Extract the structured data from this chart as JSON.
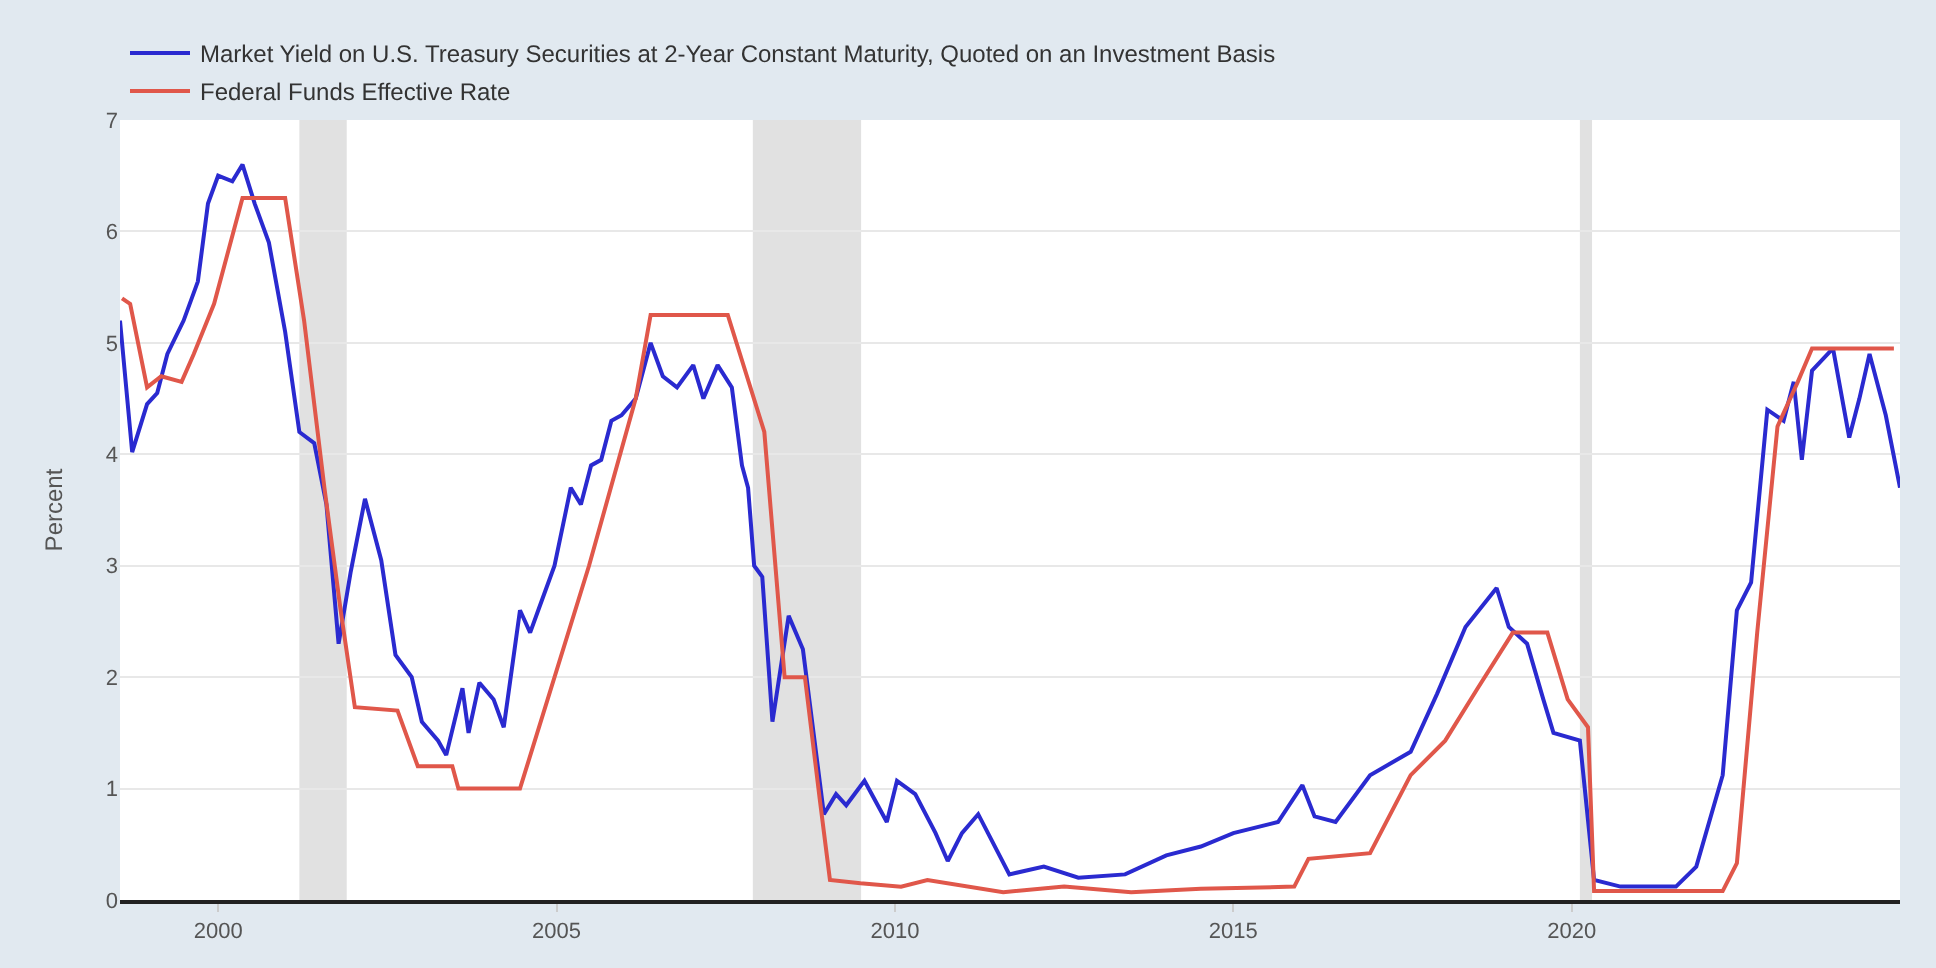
{
  "chart_data": {
    "type": "line",
    "ylabel": "Percent",
    "xlim": [
      1998.55,
      2024.85
    ],
    "xticks": [
      2000,
      2005,
      2010,
      2015,
      2020
    ],
    "ylim": [
      0,
      7
    ],
    "yticks": [
      0,
      1,
      2,
      3,
      4,
      5,
      6,
      7
    ],
    "grid": "y",
    "legend": "top left",
    "marker": "none",
    "line_style": "solid",
    "bands": [
      {
        "axis": "x",
        "from": 2001.2,
        "to": 2001.9,
        "color": "#e1e1e1"
      },
      {
        "axis": "x",
        "from": 2007.9,
        "to": 2009.5,
        "color": "#e1e1e1"
      },
      {
        "axis": "x",
        "from": 2020.12,
        "to": 2020.3,
        "color": "#e1e1e1"
      }
    ],
    "series": [
      {
        "name": "Market Yield on U.S. Treasury Securities at 2-Year Constant Maturity, Quoted on an Investment Basis",
        "color": "#2a2ad0",
        "x": [
          1998.55,
          1998.73,
          1998.95,
          1999.1,
          1999.25,
          1999.49,
          1999.7,
          1999.85,
          2000,
          2000.21,
          2000.36,
          2000.54,
          2000.75,
          2000.99,
          2001.2,
          2001.42,
          2001.6,
          2001.78,
          2001.96,
          2002.17,
          2002.41,
          2002.62,
          2002.86,
          2003.01,
          2003.25,
          2003.37,
          2003.61,
          2003.7,
          2003.86,
          2004.07,
          2004.22,
          2004.46,
          2004.61,
          2004.73,
          2004.97,
          2005.21,
          2005.36,
          2005.51,
          2005.66,
          2005.81,
          2005.96,
          2006.17,
          2006.39,
          2006.57,
          2006.78,
          2007.02,
          2007.17,
          2007.38,
          2007.59,
          2007.74,
          2007.83,
          2007.92,
          2008.04,
          2008.19,
          2008.43,
          2008.64,
          2008.95,
          2009.13,
          2009.28,
          2009.55,
          2009.88,
          2010.03,
          2010.3,
          2010.6,
          2010.78,
          2010.99,
          2011.23,
          2011.69,
          2012.2,
          2012.71,
          2013.4,
          2014.01,
          2014.52,
          2015,
          2015.66,
          2016.02,
          2016.2,
          2016.51,
          2017.02,
          2017.62,
          2018.01,
          2018.43,
          2018.89,
          2019.07,
          2019.34,
          2019.58,
          2019.73,
          2020.12,
          2020.33,
          2020.72,
          2021.54,
          2021.84,
          2022.23,
          2022.44,
          2022.65,
          2022.89,
          2023.13,
          2023.28,
          2023.4,
          2023.55,
          2023.86,
          2024.1,
          2024.25,
          2024.4,
          2024.64,
          2024.85
        ],
        "values": [
          5.2,
          4.02,
          4.45,
          4.55,
          4.9,
          5.2,
          5.55,
          6.25,
          6.5,
          6.45,
          6.6,
          6.25,
          5.9,
          5.1,
          4.2,
          4.1,
          3.55,
          2.3,
          2.95,
          3.6,
          3.05,
          2.2,
          2.0,
          1.6,
          1.43,
          1.3,
          1.9,
          1.5,
          1.95,
          1.8,
          1.55,
          2.6,
          2.4,
          2.6,
          3.0,
          3.7,
          3.55,
          3.9,
          3.95,
          4.3,
          4.35,
          4.5,
          5.0,
          4.7,
          4.6,
          4.8,
          4.5,
          4.8,
          4.6,
          3.9,
          3.7,
          3.0,
          2.9,
          1.6,
          2.55,
          2.25,
          0.77,
          0.95,
          0.85,
          1.07,
          0.7,
          1.07,
          0.95,
          0.6,
          0.35,
          0.6,
          0.77,
          0.23,
          0.3,
          0.2,
          0.23,
          0.4,
          0.48,
          0.6,
          0.7,
          1.03,
          0.75,
          0.7,
          1.12,
          1.33,
          1.85,
          2.45,
          2.8,
          2.45,
          2.3,
          1.8,
          1.5,
          1.43,
          0.18,
          0.12,
          0.12,
          0.3,
          1.12,
          2.6,
          2.85,
          4.4,
          4.3,
          4.65,
          3.95,
          4.75,
          4.95,
          4.15,
          4.5,
          4.9,
          4.35,
          3.7
        ]
      },
      {
        "name": "Federal Funds Effective Rate",
        "color": "#e0574a",
        "x": [
          1998.58,
          1998.7,
          1998.95,
          1999.16,
          1999.46,
          1999.64,
          1999.94,
          2000.36,
          2000.99,
          2001.27,
          2001.57,
          2001.81,
          2002.02,
          2002.65,
          2002.95,
          2003.46,
          2003.55,
          2004.46,
          2005.48,
          2006.17,
          2006.39,
          2007.53,
          2008.07,
          2008.37,
          2008.67,
          2008.89,
          2009.04,
          2009.49,
          2010.09,
          2010.48,
          2011.6,
          2012.5,
          2013.49,
          2014.52,
          2015.9,
          2016.11,
          2017.02,
          2017.62,
          2018.13,
          2018.61,
          2019.13,
          2019.64,
          2019.94,
          2020.24,
          2020.33,
          2022.23,
          2022.44,
          2022.74,
          2023.04,
          2023.34,
          2023.55,
          2024.76
        ],
        "values": [
          5.4,
          5.35,
          4.6,
          4.7,
          4.65,
          4.9,
          5.35,
          6.3,
          6.3,
          5.2,
          3.7,
          2.6,
          1.73,
          1.7,
          1.2,
          1.2,
          1.0,
          1.0,
          3.0,
          4.5,
          5.25,
          5.25,
          4.2,
          2.0,
          2.0,
          0.9,
          0.18,
          0.15,
          0.12,
          0.18,
          0.07,
          0.12,
          0.07,
          0.1,
          0.12,
          0.37,
          0.42,
          1.12,
          1.43,
          1.9,
          2.4,
          2.4,
          1.8,
          1.55,
          0.08,
          0.08,
          0.33,
          2.4,
          4.25,
          4.65,
          4.95,
          4.95
        ]
      }
    ]
  }
}
